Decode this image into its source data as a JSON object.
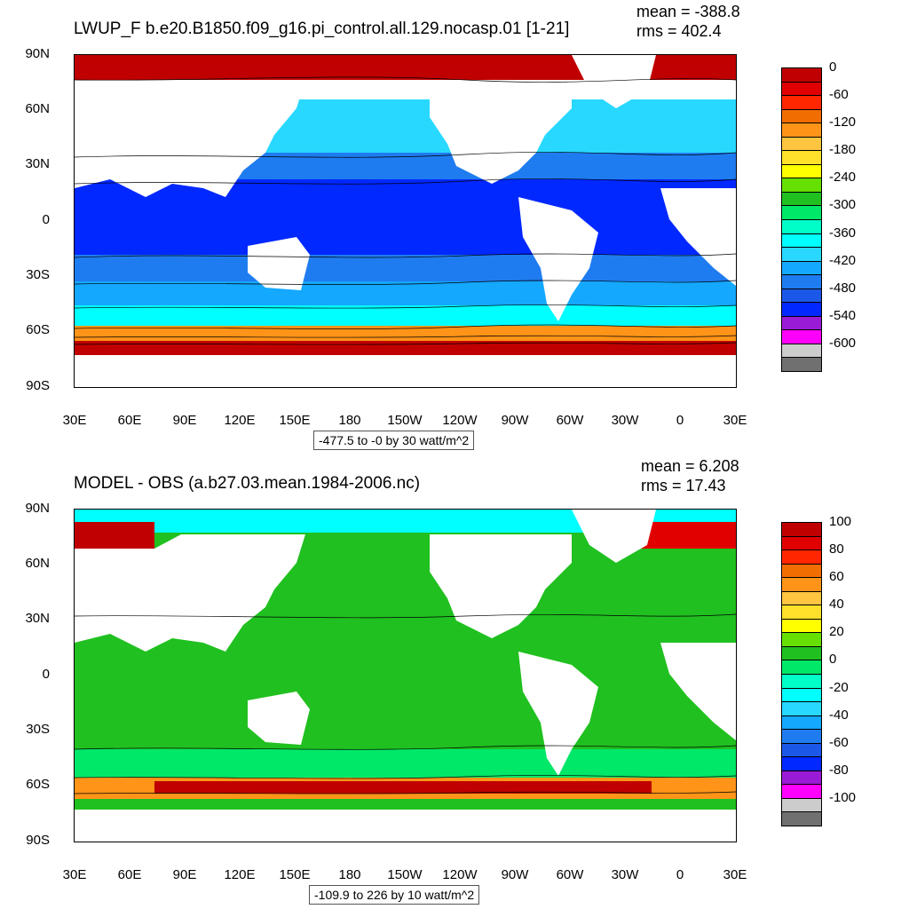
{
  "panels": [
    {
      "title": "LWUP_F b.e20.B1850.f09_g16.pi_control.all.129.nocasp.01 [1-21]",
      "mean": "mean = -388.8",
      "rms": "rms = 402.4",
      "range": "-477.5 to -0 by 30 watt/m^2",
      "colorbar": {
        "labels": [
          "0",
          "-60",
          "-120",
          "-180",
          "-240",
          "-300",
          "-360",
          "-420",
          "-480",
          "-540",
          "-600"
        ],
        "colors": [
          "#c00000",
          "#e00000",
          "#ff2600",
          "#f26d00",
          "#ff9418",
          "#ffc440",
          "#ffe02a",
          "#ffff00",
          "#66e000",
          "#20c020",
          "#00e868",
          "#00ffc8",
          "#00ffff",
          "#28d8ff",
          "#14a8ff",
          "#1f7cf0",
          "#1c58e8",
          "#0028ff",
          "#9a1bd6",
          "#ff00ff",
          "#cccccc",
          "#707070"
        ]
      }
    },
    {
      "title": "MODEL - OBS (a.b27.03.mean.1984-2006.nc)",
      "mean": "mean = 6.208",
      "rms": "rms = 17.43",
      "range": "-109.9 to 226 by 10 watt/m^2",
      "colorbar": {
        "labels": [
          "100",
          "80",
          "60",
          "40",
          "20",
          "0",
          "-20",
          "-40",
          "-60",
          "-80",
          "-100"
        ],
        "colors": [
          "#c00000",
          "#e00000",
          "#ff2600",
          "#f26d00",
          "#ff9418",
          "#ffc440",
          "#ffe02a",
          "#ffff00",
          "#66e000",
          "#20c020",
          "#00e868",
          "#00ffc8",
          "#00ffff",
          "#28d8ff",
          "#14a8ff",
          "#1f7cf0",
          "#1c58e8",
          "#0028ff",
          "#9a1bd6",
          "#ff00ff",
          "#cccccc",
          "#707070"
        ]
      }
    }
  ],
  "axes": {
    "lat_labels": [
      "90N",
      "60N",
      "30N",
      "0",
      "30S",
      "60S",
      "90S"
    ],
    "lon_labels": [
      "30E",
      "60E",
      "90E",
      "120E",
      "150E",
      "180",
      "150W",
      "120W",
      "90W",
      "60W",
      "30W",
      "0",
      "30E"
    ]
  },
  "map_colors": {
    "land": "#ffffff",
    "coast_line": "#000000"
  }
}
